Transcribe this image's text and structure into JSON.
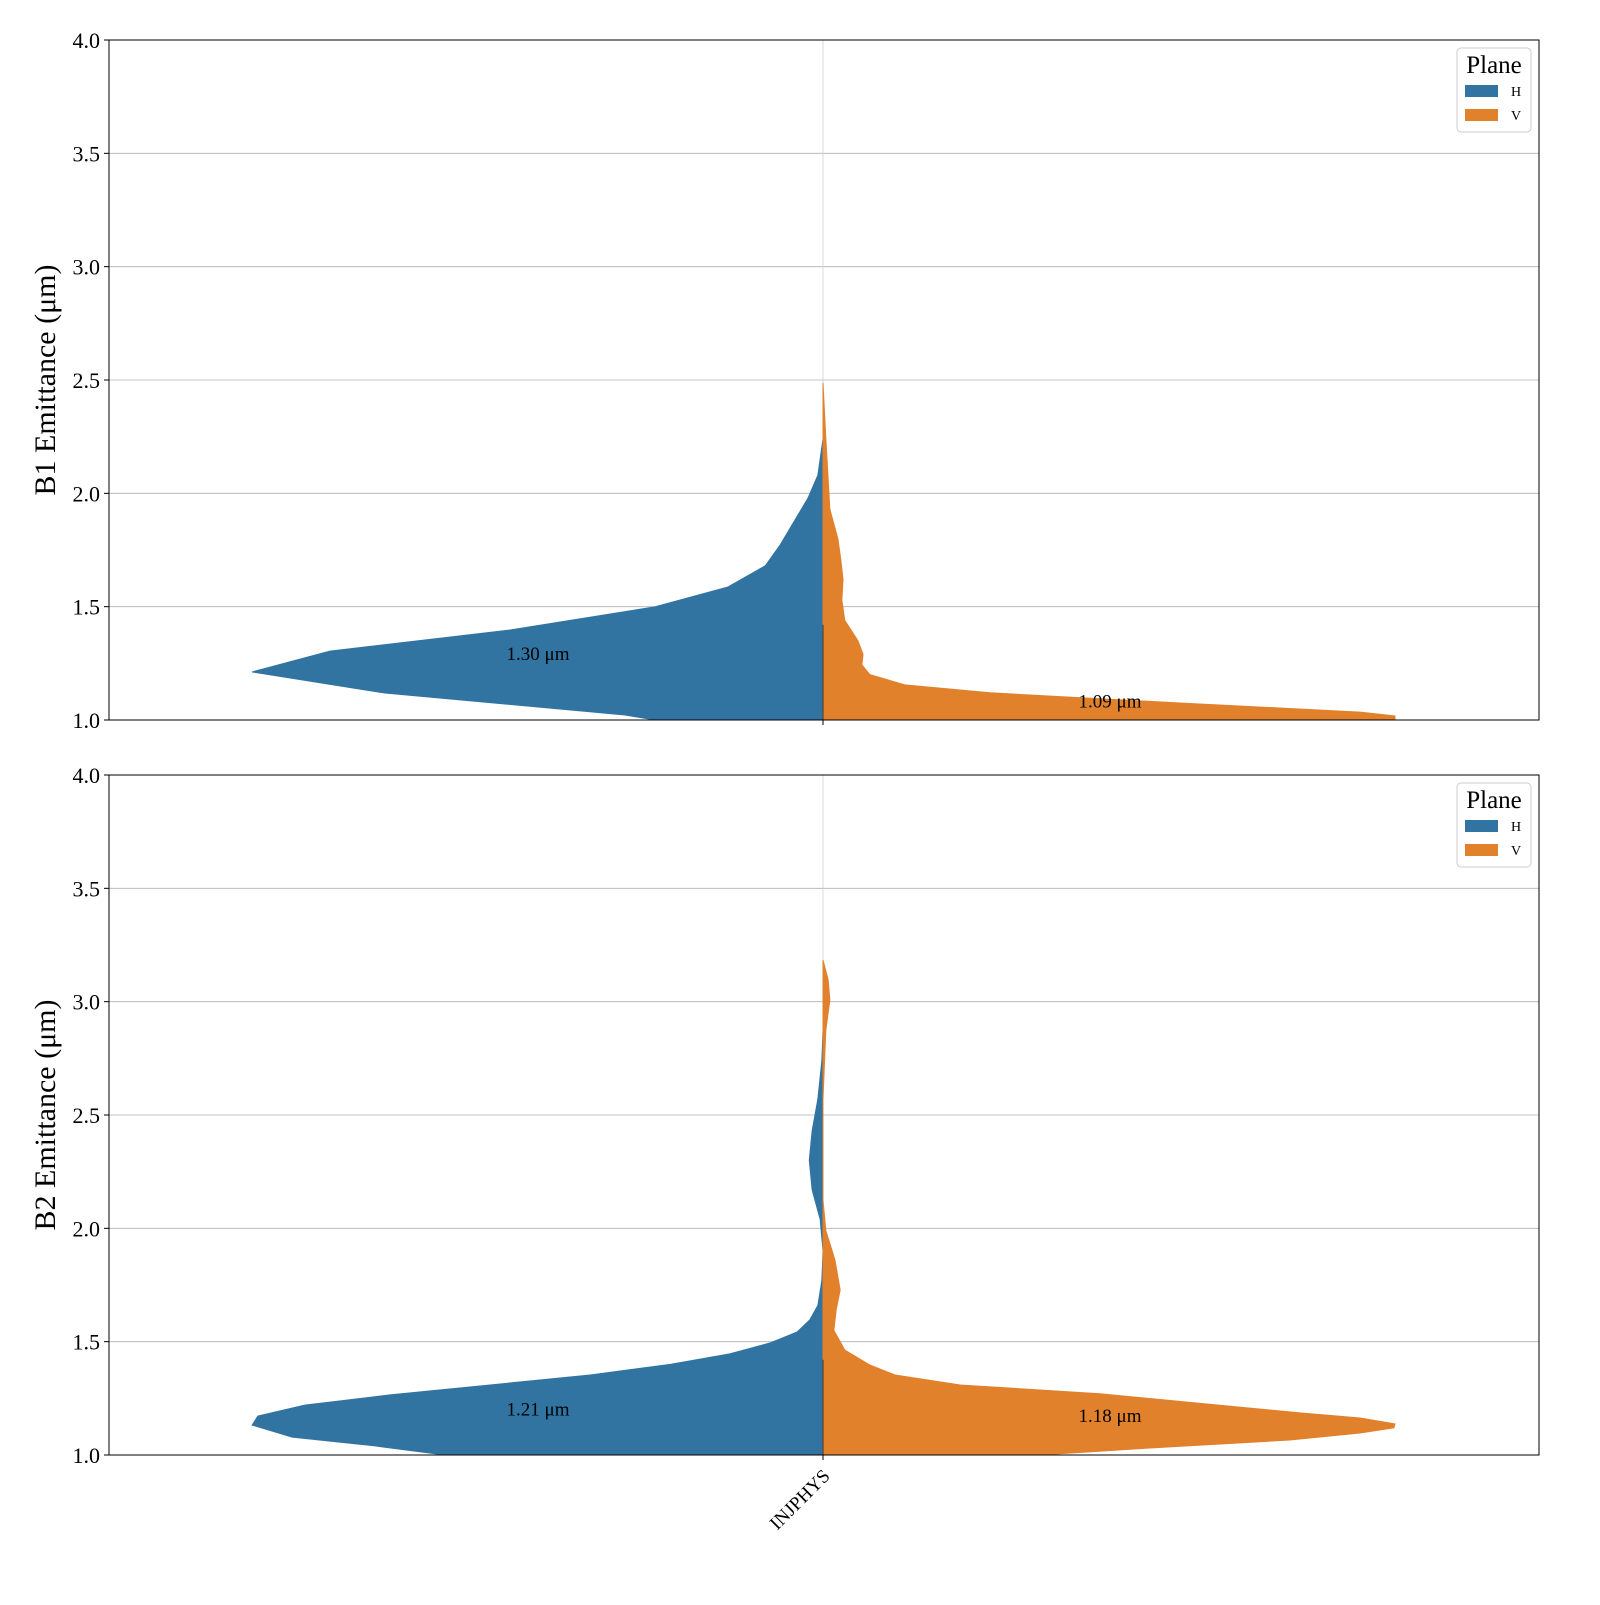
{
  "chart_data": [
    {
      "type": "violin",
      "ylabel": "B1 Emittance (μm)",
      "ylim": [
        1.0,
        4.0
      ],
      "yticks": [
        "1.0",
        "1.5",
        "2.0",
        "2.5",
        "3.0",
        "3.5",
        "4.0"
      ],
      "categories": [
        "INJPHYS"
      ],
      "grid": true,
      "legend": {
        "title": "Plane",
        "placement": "top-right",
        "entries": [
          "H",
          "V"
        ]
      },
      "series": [
        {
          "name": "H",
          "color": "#3274a1",
          "median_label": "1.30 μm",
          "median": 1.3,
          "profile": [
            [
              1.0,
              0.294
            ],
            [
              1.022,
              0.346
            ],
            [
              1.119,
              0.766
            ],
            [
              1.212,
              0.998
            ],
            [
              1.304,
              0.862
            ],
            [
              1.397,
              0.547
            ],
            [
              1.499,
              0.294
            ],
            [
              1.587,
              0.166
            ],
            [
              1.68,
              0.101
            ],
            [
              1.772,
              0.075
            ],
            [
              1.98,
              0.026
            ],
            [
              2.08,
              0.009
            ],
            [
              2.24,
              0
            ]
          ]
        },
        {
          "name": "V",
          "color": "#e1812c",
          "median_label": "1.09 μm",
          "median": 1.09,
          "profile": [
            [
              1.0,
              1.0
            ],
            [
              1.018,
              1.0
            ],
            [
              1.035,
              0.939
            ],
            [
              1.075,
              0.624
            ],
            [
              1.12,
              0.292
            ],
            [
              1.155,
              0.143
            ],
            [
              1.2,
              0.082
            ],
            [
              1.243,
              0.068
            ],
            [
              1.29,
              0.07
            ],
            [
              1.35,
              0.061
            ],
            [
              1.44,
              0.038
            ],
            [
              1.53,
              0.033
            ],
            [
              1.62,
              0.035
            ],
            [
              1.71,
              0.031
            ],
            [
              1.8,
              0.026
            ],
            [
              1.93,
              0.012
            ],
            [
              2.24,
              0.005
            ],
            [
              2.487,
              0
            ]
          ]
        }
      ]
    },
    {
      "type": "violin",
      "ylabel": "B2 Emittance (μm)",
      "ylim": [
        1.0,
        4.0
      ],
      "yticks": [
        "1.0",
        "1.5",
        "2.0",
        "2.5",
        "3.0",
        "3.5",
        "4.0"
      ],
      "categories": [
        "INJPHYS"
      ],
      "grid": true,
      "legend": {
        "title": "Plane",
        "placement": "top-right",
        "entries": [
          "H",
          "V"
        ]
      },
      "series": [
        {
          "name": "H",
          "color": "#3274a1",
          "median_label": "1.21 μm",
          "median": 1.21,
          "profile": [
            [
              1.0,
              0.661
            ],
            [
              1.04,
              0.783
            ],
            [
              1.079,
              0.928
            ],
            [
              1.132,
              0.998
            ],
            [
              1.172,
              0.988
            ],
            [
              1.22,
              0.906
            ],
            [
              1.265,
              0.757
            ],
            [
              1.353,
              0.407
            ],
            [
              1.4,
              0.267
            ],
            [
              1.446,
              0.163
            ],
            [
              1.494,
              0.093
            ],
            [
              1.543,
              0.045
            ],
            [
              1.596,
              0.023
            ],
            [
              1.66,
              0.009
            ],
            [
              1.77,
              0.002
            ],
            [
              1.9,
              0
            ],
            [
              2.04,
              0.005
            ],
            [
              2.17,
              0.019
            ],
            [
              2.3,
              0.024
            ],
            [
              2.43,
              0.019
            ],
            [
              2.57,
              0.009
            ],
            [
              2.74,
              0.002
            ],
            [
              2.875,
              0
            ]
          ]
        },
        {
          "name": "V",
          "color": "#e1812c",
          "median_label": "1.18 μm",
          "median": 1.18,
          "profile": [
            [
              1.0,
              0.379
            ],
            [
              1.031,
              0.572
            ],
            [
              1.066,
              0.816
            ],
            [
              1.097,
              0.939
            ],
            [
              1.12,
              0.998
            ],
            [
              1.137,
              1.0
            ],
            [
              1.163,
              0.939
            ],
            [
              1.186,
              0.834
            ],
            [
              1.27,
              0.484
            ],
            [
              1.309,
              0.24
            ],
            [
              1.353,
              0.126
            ],
            [
              1.397,
              0.082
            ],
            [
              1.463,
              0.038
            ],
            [
              1.55,
              0.019
            ],
            [
              1.64,
              0.023
            ],
            [
              1.728,
              0.03
            ],
            [
              1.86,
              0.021
            ],
            [
              1.99,
              0.005
            ],
            [
              2.125,
              0
            ],
            [
              2.57,
              0
            ],
            [
              2.875,
              0.005
            ],
            [
              3.007,
              0.012
            ],
            [
              3.096,
              0.009
            ],
            [
              3.184,
              0
            ]
          ]
        }
      ]
    }
  ]
}
